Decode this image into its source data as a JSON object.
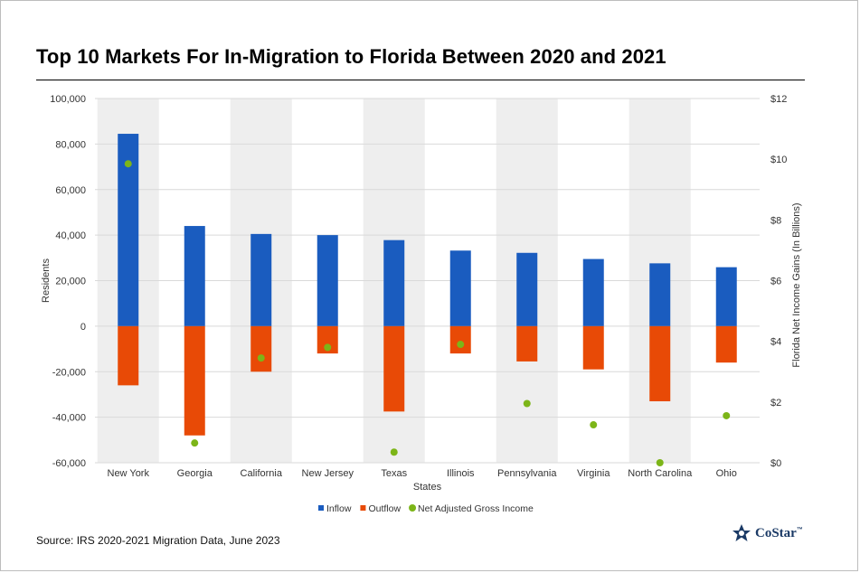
{
  "chart_data": {
    "type": "bar",
    "title": "Top 10 Markets For In-Migration to Florida Between 2020 and 2021",
    "xlabel": "States",
    "ylabel": "Residents",
    "y2label": "Florida Net Income Gains (In Billions)",
    "ylim": [
      -60000,
      100000
    ],
    "y2lim": [
      0,
      12
    ],
    "yticks": [
      "100,000",
      "80,000",
      "60,000",
      "40,000",
      "20,000",
      "0",
      "-20,000",
      "-40,000",
      "-60,000"
    ],
    "y2ticks": [
      "$12",
      "$10",
      "$8",
      "$6",
      "$4",
      "$2",
      "$0"
    ],
    "categories": [
      "New York",
      "Georgia",
      "California",
      "New Jersey",
      "Texas",
      "Illinois",
      "Pennsylvania",
      "Virginia",
      "North Carolina",
      "Ohio"
    ],
    "series": [
      {
        "name": "Inflow",
        "color": "#1a5cbf",
        "type": "bar",
        "values": [
          84500,
          44000,
          40500,
          40000,
          37800,
          33200,
          32200,
          29500,
          27600,
          25900
        ]
      },
      {
        "name": "Outflow",
        "color": "#e84a06",
        "type": "bar",
        "values": [
          -26000,
          -48000,
          -20000,
          -12000,
          -37500,
          -12000,
          -15500,
          -19000,
          -33000,
          -16000
        ]
      },
      {
        "name": "Net Adjusted Gross Income",
        "color": "#7cb518",
        "type": "scatter",
        "axis": "y2",
        "values": [
          9.85,
          0.65,
          3.45,
          3.8,
          0.35,
          3.9,
          1.95,
          1.25,
          0.0,
          1.55
        ]
      }
    ],
    "legend_position": "bottom",
    "grid": true,
    "source": "Source: IRS 2020-2021 Migration Data, June 2023"
  },
  "brand": {
    "name": "CoStar",
    "tm": "™",
    "color": "#1b3a66"
  }
}
